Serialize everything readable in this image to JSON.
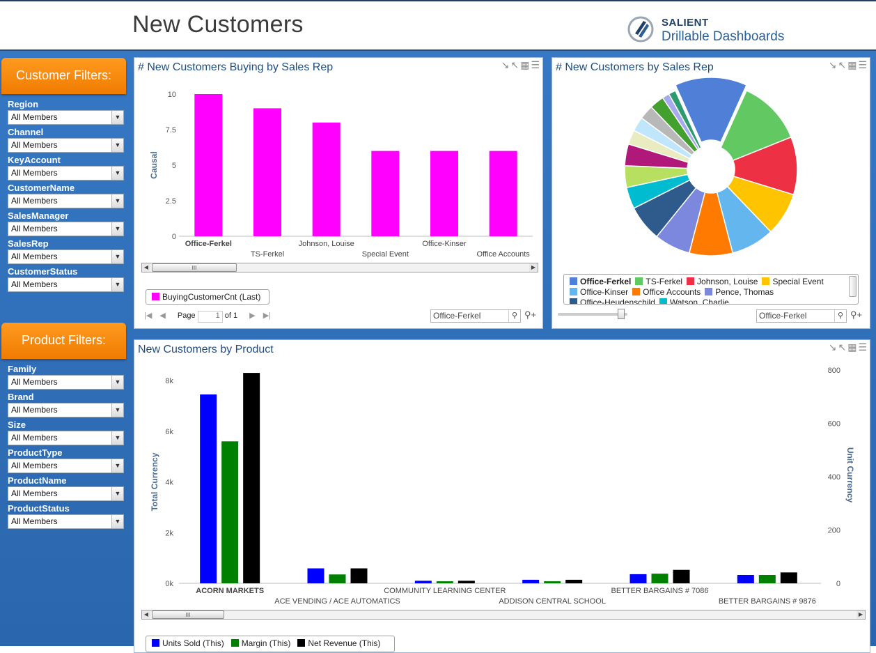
{
  "header": {
    "title": "New Customers",
    "brand_top": "SALIENT",
    "brand_bottom": "Drillable Dashboards"
  },
  "customer_filters": {
    "title": "Customer Filters:",
    "items": [
      {
        "label": "Region",
        "value": "All Members"
      },
      {
        "label": "Channel",
        "value": "All Members"
      },
      {
        "label": "KeyAccount",
        "value": "All Members"
      },
      {
        "label": "CustomerName",
        "value": "All Members"
      },
      {
        "label": "SalesManager",
        "value": "All Members"
      },
      {
        "label": "SalesRep",
        "value": "All Members"
      },
      {
        "label": "CustomerStatus",
        "value": "All Members"
      }
    ]
  },
  "product_filters": {
    "title": "Product Filters:",
    "items": [
      {
        "label": "Family",
        "value": "All Members"
      },
      {
        "label": "Brand",
        "value": "All Members"
      },
      {
        "label": "Size",
        "value": "All Members"
      },
      {
        "label": "ProductType",
        "value": "All Members"
      },
      {
        "label": "ProductName",
        "value": "All Members"
      },
      {
        "label": "ProductStatus",
        "value": "All Members"
      }
    ]
  },
  "panel_bar": {
    "title": "# New Customers Buying by Sales Rep",
    "legend": "BuyingCustomerCnt (Last)",
    "pager": {
      "page_label": "Page",
      "page_value": "1",
      "of_label": "of 1"
    },
    "search_value": "Office-Ferkel"
  },
  "panel_pie": {
    "title": "# New Customers by Sales Rep",
    "search_value": "Office-Ferkel",
    "legend": [
      {
        "name": "Office-Ferkel",
        "color": "#4f7fd6"
      },
      {
        "name": "TS-Ferkel",
        "color": "#62c962"
      },
      {
        "name": "Johnson, Louise",
        "color": "#ee3044"
      },
      {
        "name": "Special Event",
        "color": "#ffc400"
      },
      {
        "name": "Office-Kinser",
        "color": "#64b6ee"
      },
      {
        "name": "Office Accounts",
        "color": "#ff7a00"
      },
      {
        "name": "Pence, Thomas",
        "color": "#7b88de"
      },
      {
        "name": "Office-Heudenschild",
        "color": "#2e5a8c"
      },
      {
        "name": "Watson, Charlie",
        "color": "#00bcd0"
      }
    ]
  },
  "panel_product": {
    "title": "New Customers by Product",
    "legend": [
      {
        "name": "Units Sold (This)",
        "color": "#0000ff"
      },
      {
        "name": "Margin (This)",
        "color": "#008000"
      },
      {
        "name": "Net Revenue (This)",
        "color": "#000000"
      }
    ]
  },
  "chart_data": [
    {
      "type": "bar",
      "title": "# New Customers Buying by Sales Rep",
      "ylabel": "Causal",
      "categories": [
        "Office-Ferkel",
        "TS-Ferkel",
        "Johnson, Louise",
        "Special Event",
        "Office-Kinser",
        "Office Accounts"
      ],
      "series": [
        {
          "name": "BuyingCustomerCnt (Last)",
          "values": [
            10,
            9,
            8,
            6,
            6,
            6
          ],
          "color": "#ff00ff"
        }
      ],
      "yticks": [
        "0",
        "2.5",
        "5",
        "7.5",
        "10"
      ],
      "ylim": [
        0,
        10
      ]
    },
    {
      "type": "pie",
      "title": "# New Customers by Sales Rep",
      "slices": [
        {
          "label": "Office-Ferkel",
          "value": 10,
          "color": "#4f7fd6"
        },
        {
          "label": "TS-Ferkel",
          "value": 9,
          "color": "#62c962"
        },
        {
          "label": "Johnson, Louise",
          "value": 8,
          "color": "#ee3044"
        },
        {
          "label": "Special Event",
          "value": 6,
          "color": "#ffc400"
        },
        {
          "label": "Office-Kinser",
          "value": 6,
          "color": "#64b6ee"
        },
        {
          "label": "Office Accounts",
          "value": 6,
          "color": "#ff7a00"
        },
        {
          "label": "Pence, Thomas",
          "value": 5,
          "color": "#7b88de"
        },
        {
          "label": "Office-Heudenschild",
          "value": 5,
          "color": "#2e5a8c"
        },
        {
          "label": "Watson, Charlie",
          "value": 3,
          "color": "#00bcd0"
        },
        {
          "label": "",
          "value": 3,
          "color": "#b8e060"
        },
        {
          "label": "",
          "value": 3,
          "color": "#b0187a"
        },
        {
          "label": "",
          "value": 2,
          "color": "#e8ecc0"
        },
        {
          "label": "",
          "value": 2,
          "color": "#bfe6fa"
        },
        {
          "label": "",
          "value": 2,
          "color": "#b8b8b8"
        },
        {
          "label": "",
          "value": 2,
          "color": "#43a02e"
        },
        {
          "label": "",
          "value": 1,
          "color": "#a9a9f0"
        },
        {
          "label": "",
          "value": 1,
          "color": "#2c9c6e"
        }
      ]
    },
    {
      "type": "bar",
      "title": "New Customers by Product",
      "ylabel": "Total Currency",
      "y2label": "Unit Currency",
      "categories": [
        "ACORN MARKETS",
        "ACE VENDING / ACE AUTOMATICS",
        "COMMUNITY LEARNING CENTER",
        "ADDISON CENTRAL SCHOOL",
        "BETTER BARGAINS # 7086",
        "BETTER BARGAINS # 9876"
      ],
      "series": [
        {
          "name": "Units Sold (This)",
          "values": [
            7450,
            590,
            100,
            140,
            360,
            330
          ],
          "color": "#0000ff"
        },
        {
          "name": "Margin (This)",
          "values": [
            5600,
            350,
            80,
            80,
            380,
            330
          ],
          "color": "#008000"
        },
        {
          "name": "Net Revenue (This)",
          "values": [
            8300,
            590,
            100,
            140,
            530,
            430
          ],
          "color": "#000000"
        }
      ],
      "yticks": [
        "0k",
        "2k",
        "4k",
        "6k",
        "8k"
      ],
      "y2ticks": [
        "0",
        "200",
        "400",
        "600",
        "800"
      ],
      "ylim": [
        0,
        8000
      ],
      "y2lim": [
        0,
        800
      ]
    }
  ]
}
